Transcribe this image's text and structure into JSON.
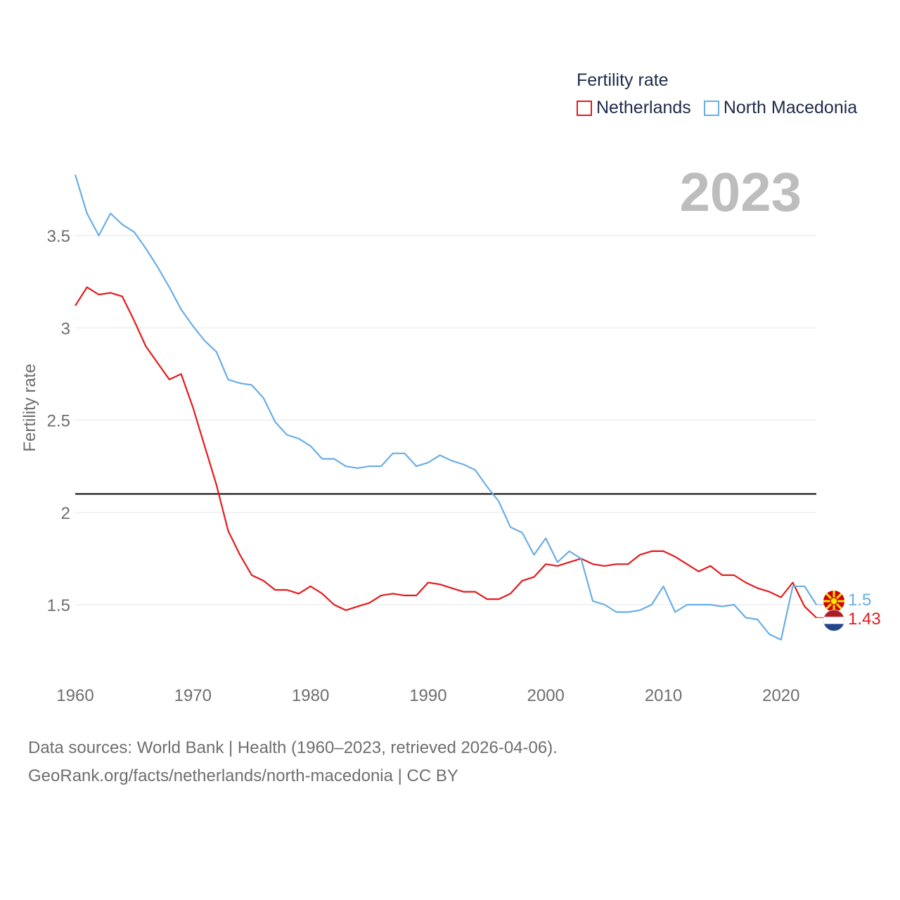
{
  "legend": {
    "title": "Fertility rate",
    "items": [
      {
        "name": "Netherlands",
        "color": "#e41a1c"
      },
      {
        "name": "North Macedonia",
        "color": "#6aaee6"
      }
    ]
  },
  "current_year": "2023",
  "footer": {
    "line1": "Data sources: World Bank | Health (1960–2023, retrieved 2026-04-06).",
    "line2": "GeoRank.org/facts/netherlands/north-macedonia | CC BY"
  },
  "chart_data": {
    "type": "line",
    "title": "Fertility rate",
    "xlabel": "",
    "ylabel": "Fertility rate",
    "xlim": [
      1960,
      2023
    ],
    "ylim": [
      1.1,
      3.9
    ],
    "x_ticks": [
      "1960",
      "1970",
      "1980",
      "1990",
      "2000",
      "2010",
      "2020"
    ],
    "y_ticks": [
      "1.5",
      "2",
      "2.5",
      "3",
      "3.5"
    ],
    "reference_line": {
      "value": 2.1,
      "color": "#000000"
    },
    "x": [
      1960,
      1961,
      1962,
      1963,
      1964,
      1965,
      1966,
      1967,
      1968,
      1969,
      1970,
      1971,
      1972,
      1973,
      1974,
      1975,
      1976,
      1977,
      1978,
      1979,
      1980,
      1981,
      1982,
      1983,
      1984,
      1985,
      1986,
      1987,
      1988,
      1989,
      1990,
      1991,
      1992,
      1993,
      1994,
      1995,
      1996,
      1997,
      1998,
      1999,
      2000,
      2001,
      2002,
      2003,
      2004,
      2005,
      2006,
      2007,
      2008,
      2009,
      2010,
      2011,
      2012,
      2013,
      2014,
      2015,
      2016,
      2017,
      2018,
      2019,
      2020,
      2021,
      2022,
      2023
    ],
    "series": [
      {
        "name": "Netherlands",
        "color": "#e41a1c",
        "end_label": "1.43",
        "values": [
          3.12,
          3.22,
          3.18,
          3.19,
          3.17,
          3.04,
          2.9,
          2.81,
          2.72,
          2.75,
          2.57,
          2.36,
          2.15,
          1.9,
          1.77,
          1.66,
          1.63,
          1.58,
          1.58,
          1.56,
          1.6,
          1.56,
          1.5,
          1.47,
          1.49,
          1.51,
          1.55,
          1.56,
          1.55,
          1.55,
          1.62,
          1.61,
          1.59,
          1.57,
          1.57,
          1.53,
          1.53,
          1.56,
          1.63,
          1.65,
          1.72,
          1.71,
          1.73,
          1.75,
          1.72,
          1.71,
          1.72,
          1.72,
          1.77,
          1.79,
          1.79,
          1.76,
          1.72,
          1.68,
          1.71,
          1.66,
          1.66,
          1.62,
          1.59,
          1.57,
          1.54,
          1.62,
          1.49,
          1.43
        ]
      },
      {
        "name": "North Macedonia",
        "color": "#6aaee6",
        "end_label": "1.5",
        "values": [
          3.83,
          3.62,
          3.5,
          3.62,
          3.56,
          3.52,
          3.43,
          3.33,
          3.22,
          3.1,
          3.01,
          2.93,
          2.87,
          2.72,
          2.7,
          2.69,
          2.62,
          2.49,
          2.42,
          2.4,
          2.36,
          2.29,
          2.29,
          2.25,
          2.24,
          2.25,
          2.25,
          2.32,
          2.32,
          2.25,
          2.27,
          2.31,
          2.28,
          2.26,
          2.23,
          2.14,
          2.06,
          1.92,
          1.89,
          1.77,
          1.86,
          1.73,
          1.79,
          1.75,
          1.52,
          1.5,
          1.46,
          1.46,
          1.47,
          1.5,
          1.6,
          1.46,
          1.5,
          1.5,
          1.5,
          1.49,
          1.5,
          1.43,
          1.42,
          1.34,
          1.31,
          1.6,
          1.6,
          1.5
        ]
      }
    ]
  }
}
